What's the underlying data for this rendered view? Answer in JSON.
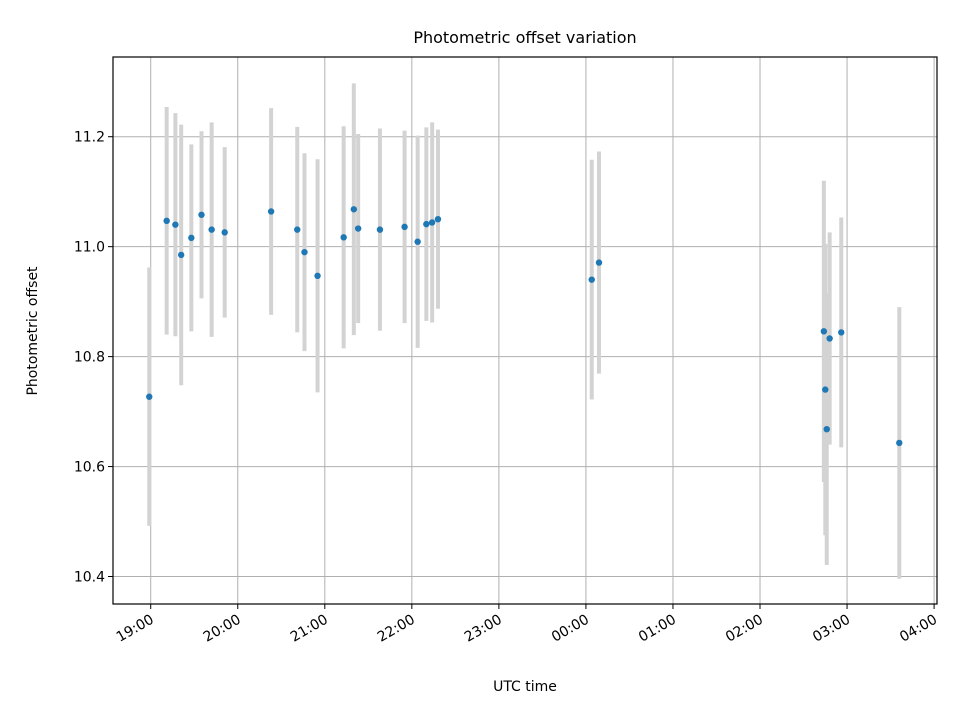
{
  "chart_data": {
    "type": "scatter",
    "title": "Photometric offset variation",
    "xlabel": "UTC time",
    "ylabel": "Photometric offset",
    "grid": true,
    "legend": "none",
    "colors": {
      "marker": "#1f77b4",
      "errorbar": "#d3d3d3",
      "grid": "#b0b0b0"
    },
    "xlim": [
      "18:34",
      "04:02"
    ],
    "ylim": [
      10.35,
      11.345
    ],
    "x_ticks": [
      "19:00",
      "20:00",
      "21:00",
      "22:00",
      "23:00",
      "00:00",
      "01:00",
      "02:00",
      "03:00",
      "04:00"
    ],
    "y_ticks": [
      "10.4",
      "10.6",
      "10.8",
      "11.0",
      "11.2"
    ],
    "series": [
      {
        "marker": "point",
        "points": [
          {
            "x": "18:59",
            "y": 10.727,
            "err": 0.235
          },
          {
            "x": "19:11",
            "y": 11.047,
            "err": 0.207
          },
          {
            "x": "19:17",
            "y": 11.04,
            "err": 0.203
          },
          {
            "x": "19:21",
            "y": 10.985,
            "err": 0.237
          },
          {
            "x": "19:28",
            "y": 11.016,
            "err": 0.17
          },
          {
            "x": "19:35",
            "y": 11.058,
            "err": 0.152
          },
          {
            "x": "19:42",
            "y": 11.031,
            "err": 0.195
          },
          {
            "x": "19:51",
            "y": 11.026,
            "err": 0.155
          },
          {
            "x": "20:23",
            "y": 11.064,
            "err": 0.188
          },
          {
            "x": "20:41",
            "y": 11.031,
            "err": 0.187
          },
          {
            "x": "20:46",
            "y": 10.99,
            "err": 0.18
          },
          {
            "x": "20:55",
            "y": 10.947,
            "err": 0.212
          },
          {
            "x": "21:13",
            "y": 11.017,
            "err": 0.202
          },
          {
            "x": "21:20",
            "y": 11.068,
            "err": 0.229
          },
          {
            "x": "21:23",
            "y": 11.033,
            "err": 0.172
          },
          {
            "x": "21:38",
            "y": 11.031,
            "err": 0.184
          },
          {
            "x": "21:55",
            "y": 11.036,
            "err": 0.175
          },
          {
            "x": "22:04",
            "y": 11.009,
            "err": 0.193
          },
          {
            "x": "22:10",
            "y": 11.041,
            "err": 0.176
          },
          {
            "x": "22:14",
            "y": 11.044,
            "err": 0.182
          },
          {
            "x": "22:18",
            "y": 11.05,
            "err": 0.163
          },
          {
            "x": "00:04",
            "y": 10.94,
            "err": 0.218
          },
          {
            "x": "00:09",
            "y": 10.971,
            "err": 0.202
          },
          {
            "x": "02:44",
            "y": 10.846,
            "err": 0.274
          },
          {
            "x": "02:45",
            "y": 10.74,
            "err": 0.265
          },
          {
            "x": "02:46",
            "y": 10.668,
            "err": 0.247
          },
          {
            "x": "02:48",
            "y": 10.833,
            "err": 0.193
          },
          {
            "x": "02:56",
            "y": 10.844,
            "err": 0.209
          },
          {
            "x": "03:36",
            "y": 10.643,
            "err": 0.247
          }
        ]
      }
    ]
  }
}
